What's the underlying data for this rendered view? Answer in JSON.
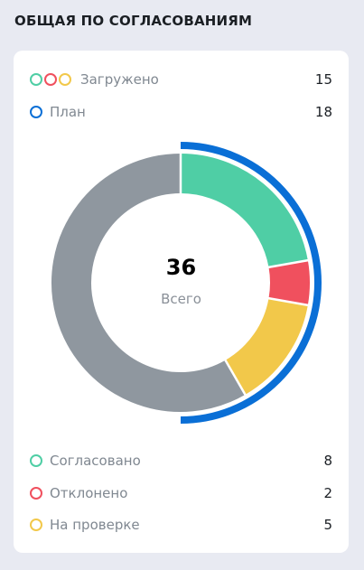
{
  "header": {
    "title": "ОБЩАЯ ПО СОГЛАСОВАНИЯМ"
  },
  "summary": {
    "loaded": {
      "label": "Загружено",
      "value": "15",
      "dot_colors": [
        "#4fcea5",
        "#f0505e",
        "#f2c84a"
      ]
    },
    "plan": {
      "label": "План",
      "value": "18",
      "dot_color": "#0a6fd6"
    }
  },
  "center": {
    "total": "36",
    "label": "Всего"
  },
  "legend": [
    {
      "label": "Согласовано",
      "value": "8",
      "color": "#4fcea5"
    },
    {
      "label": "Отклонено",
      "value": "2",
      "color": "#f0505e"
    },
    {
      "label": "На проверке",
      "value": "5",
      "color": "#f2c84a"
    }
  ],
  "chart_data": {
    "type": "pie",
    "total": 36,
    "segments": [
      {
        "name": "Согласовано",
        "value": 8,
        "color": "#4fcea5"
      },
      {
        "name": "Отклонено",
        "value": 2,
        "color": "#f0505e"
      },
      {
        "name": "На проверке",
        "value": 5,
        "color": "#f2c84a"
      },
      {
        "name": "",
        "value": 21,
        "color": "#8f979f"
      }
    ],
    "outer_ring": {
      "name": "План",
      "value": 18,
      "color": "#0a6fd6"
    }
  }
}
